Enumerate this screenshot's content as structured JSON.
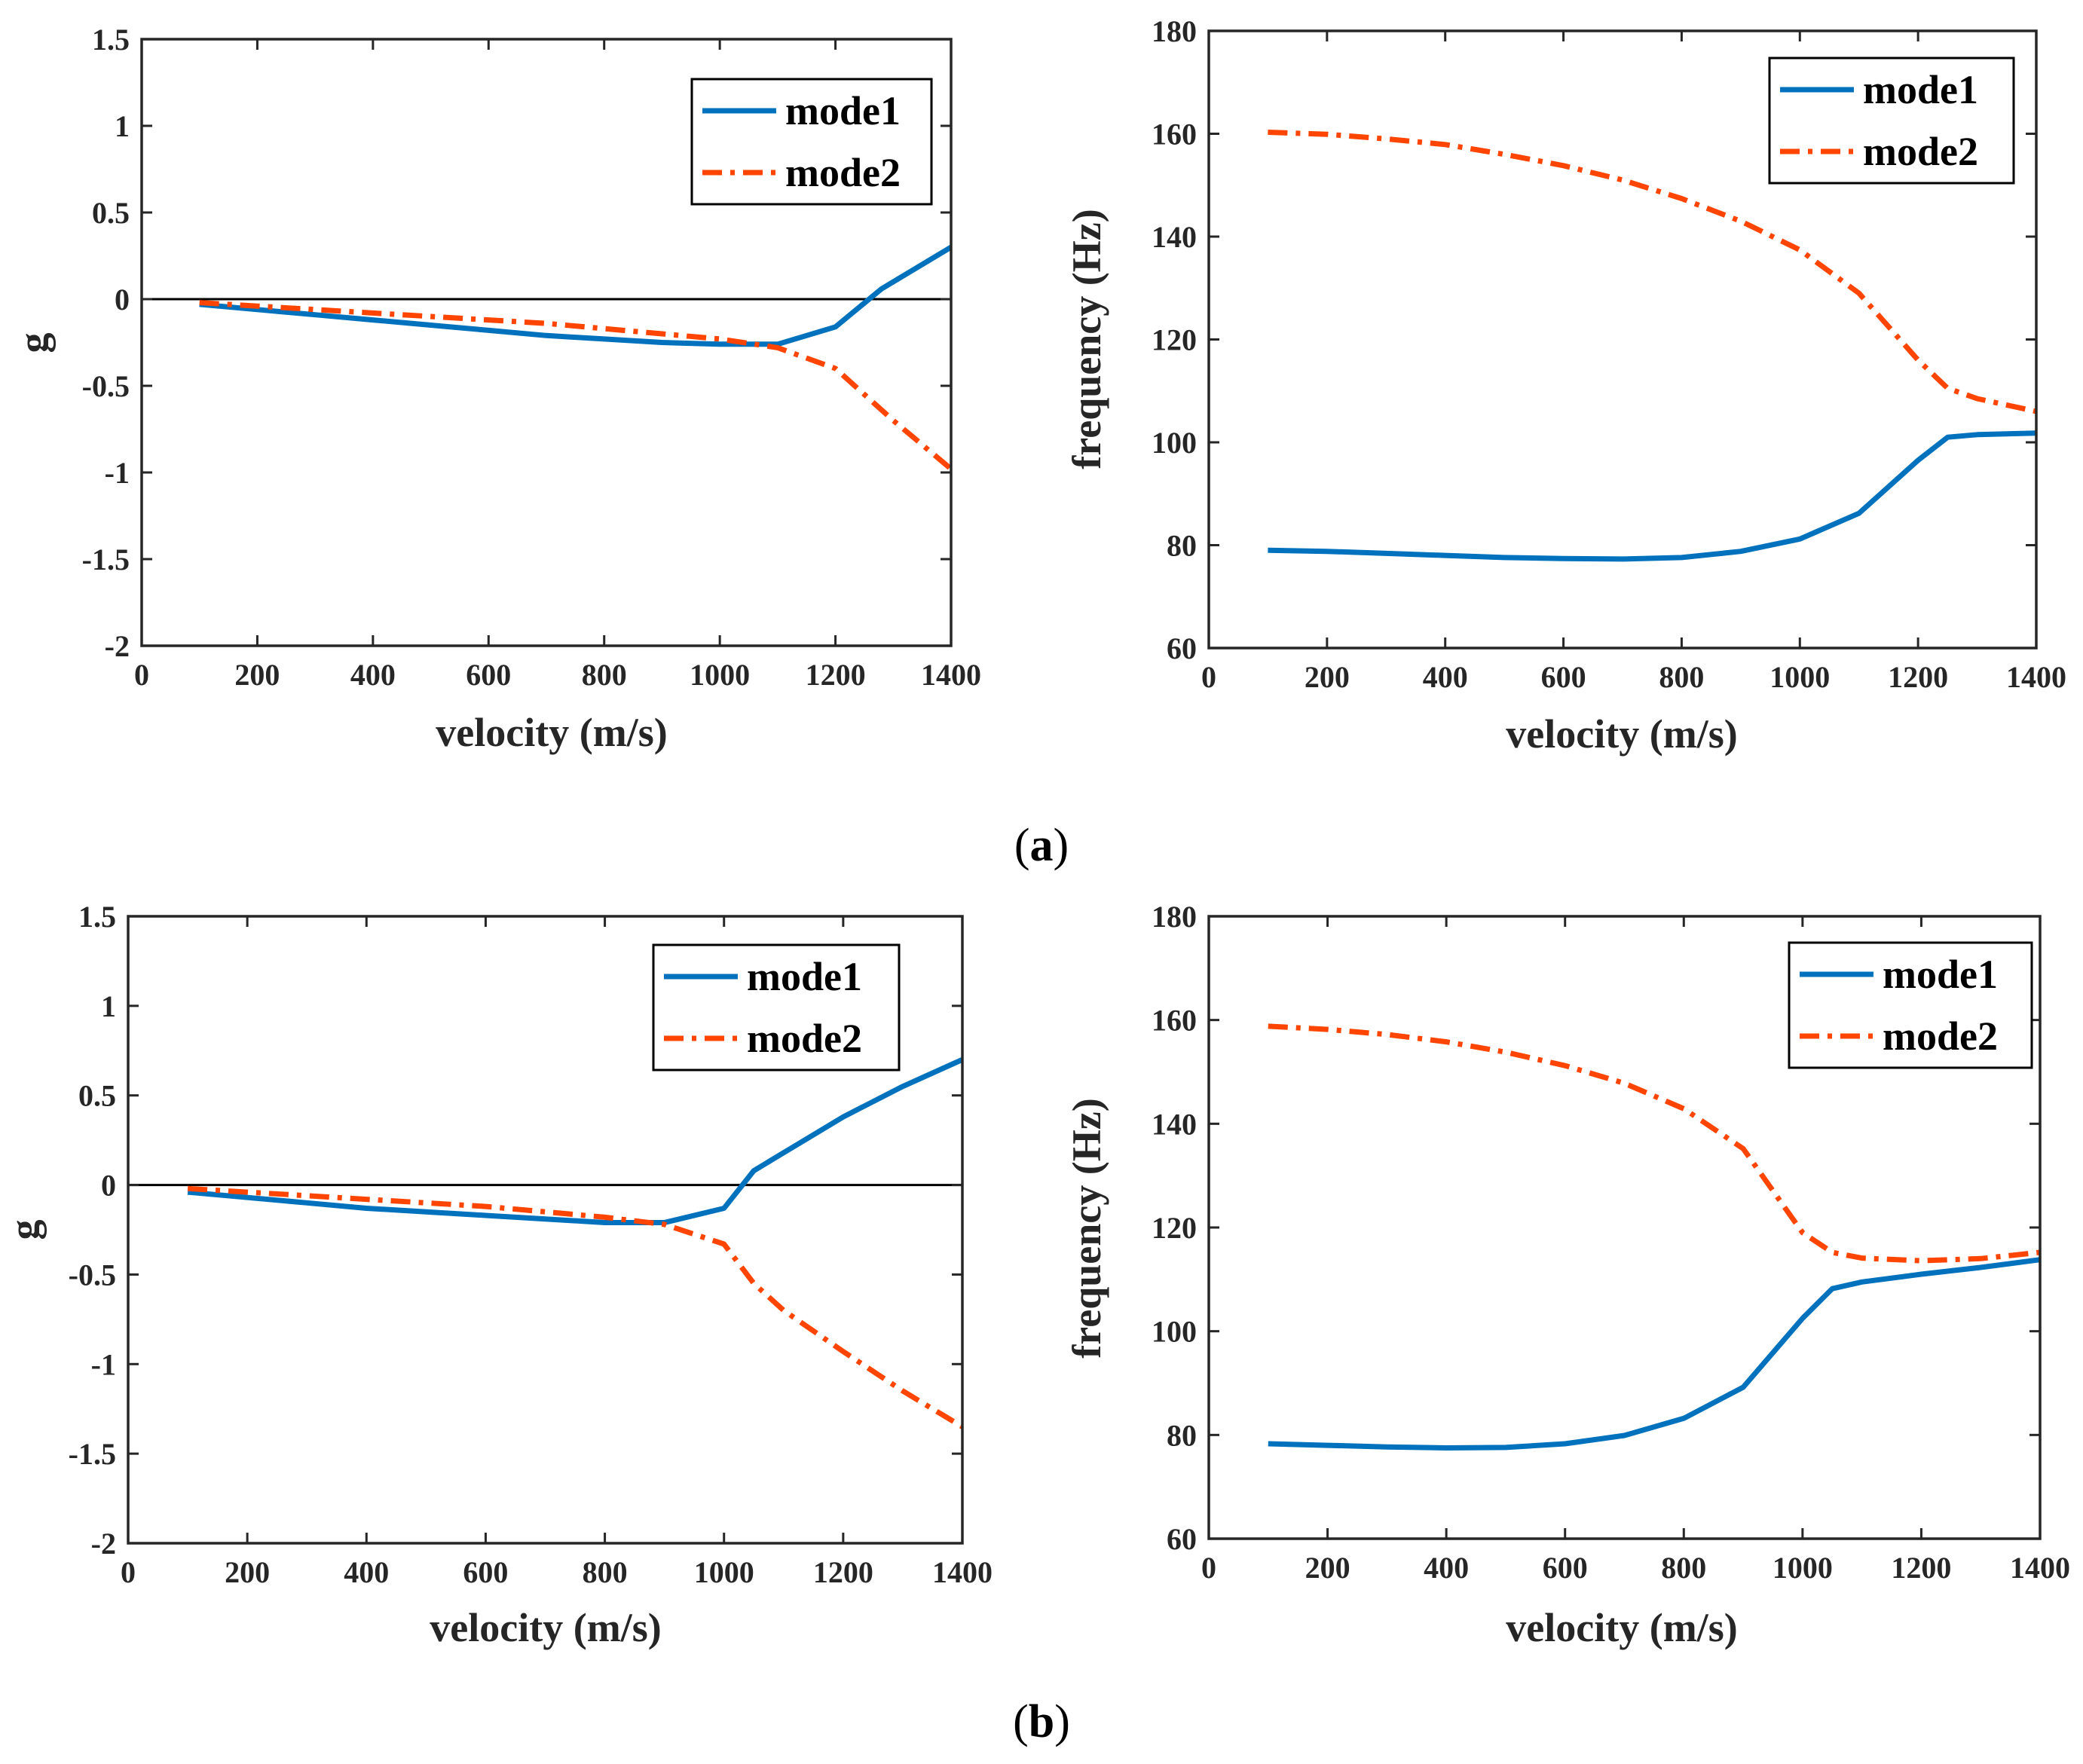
{
  "panels": [
    {
      "label": "(a)",
      "letter": "a"
    },
    {
      "label": "(b)",
      "letter": "b"
    }
  ],
  "colors": {
    "mode1": "#0072BD",
    "mode2": "#FF4500",
    "axis": "#262626",
    "zero_line": "#000000"
  },
  "chart_data": [
    {
      "id": "a-damping",
      "type": "line",
      "panel": "a",
      "xlabel": "velocity (m/s)",
      "ylabel": "g",
      "xlim": [
        0,
        1400
      ],
      "ylim": [
        -2,
        1.5
      ],
      "xticks": [
        0,
        200,
        400,
        600,
        800,
        1000,
        1200,
        1400
      ],
      "yticks": [
        -2,
        -1.5,
        -1,
        -0.5,
        0,
        0.5,
        1,
        1.5
      ],
      "legend": {
        "position": "top-right",
        "entries": [
          "mode1",
          "mode2"
        ]
      },
      "zero_line": true,
      "series": [
        {
          "name": "mode1",
          "style": "solid",
          "x": [
            100,
            200,
            300,
            400,
            500,
            600,
            700,
            800,
            900,
            1000,
            1100,
            1200,
            1280,
            1300,
            1400
          ],
          "y": [
            -0.03,
            -0.06,
            -0.09,
            -0.12,
            -0.15,
            -0.18,
            -0.21,
            -0.23,
            -0.25,
            -0.26,
            -0.26,
            -0.16,
            0.06,
            0.1,
            0.3
          ]
        },
        {
          "name": "mode2",
          "style": "dashdot",
          "x": [
            100,
            200,
            300,
            400,
            500,
            600,
            700,
            800,
            900,
            1000,
            1100,
            1200,
            1300,
            1400
          ],
          "y": [
            -0.02,
            -0.04,
            -0.06,
            -0.08,
            -0.1,
            -0.12,
            -0.14,
            -0.17,
            -0.2,
            -0.23,
            -0.28,
            -0.4,
            -0.7,
            -0.98
          ]
        }
      ]
    },
    {
      "id": "a-frequency",
      "type": "line",
      "panel": "a",
      "xlabel": "velocity (m/s)",
      "ylabel": "frequency (Hz)",
      "xlim": [
        0,
        1400
      ],
      "ylim": [
        60,
        180
      ],
      "xticks": [
        0,
        200,
        400,
        600,
        800,
        1000,
        1200,
        1400
      ],
      "yticks": [
        60,
        80,
        100,
        120,
        140,
        160,
        180
      ],
      "legend": {
        "position": "top-right",
        "entries": [
          "mode1",
          "mode2"
        ]
      },
      "zero_line": false,
      "series": [
        {
          "name": "mode1",
          "style": "solid",
          "x": [
            100,
            200,
            300,
            400,
            500,
            600,
            700,
            800,
            900,
            1000,
            1100,
            1200,
            1250,
            1300,
            1400
          ],
          "y": [
            79.0,
            78.8,
            78.4,
            78.0,
            77.6,
            77.4,
            77.3,
            77.6,
            78.8,
            81.2,
            86.2,
            96.5,
            101.0,
            101.5,
            101.8
          ]
        },
        {
          "name": "mode2",
          "style": "dashdot",
          "x": [
            100,
            200,
            300,
            400,
            500,
            600,
            700,
            800,
            900,
            1000,
            1100,
            1200,
            1250,
            1300,
            1400
          ],
          "y": [
            160.3,
            159.9,
            159.0,
            157.9,
            156.0,
            153.8,
            151.0,
            147.4,
            143.0,
            137.4,
            129.0,
            116.0,
            110.5,
            108.5,
            106.0
          ]
        }
      ]
    },
    {
      "id": "b-damping",
      "type": "line",
      "panel": "b",
      "xlabel": "velocity (m/s)",
      "ylabel": "g",
      "xlim": [
        0,
        1400
      ],
      "ylim": [
        -2,
        1.5
      ],
      "xticks": [
        0,
        200,
        400,
        600,
        800,
        1000,
        1200,
        1400
      ],
      "yticks": [
        -2,
        -1.5,
        -1,
        -0.5,
        0,
        0.5,
        1,
        1.5
      ],
      "legend": {
        "position": "top-right",
        "entries": [
          "mode1",
          "mode2"
        ]
      },
      "zero_line": true,
      "series": [
        {
          "name": "mode1",
          "style": "solid",
          "x": [
            100,
            200,
            300,
            400,
            500,
            600,
            700,
            800,
            900,
            1000,
            1050,
            1100,
            1200,
            1300,
            1400
          ],
          "y": [
            -0.04,
            -0.07,
            -0.1,
            -0.13,
            -0.15,
            -0.17,
            -0.19,
            -0.21,
            -0.21,
            -0.13,
            0.08,
            0.18,
            0.38,
            0.55,
            0.7
          ]
        },
        {
          "name": "mode2",
          "style": "dashdot",
          "x": [
            100,
            200,
            300,
            400,
            500,
            600,
            700,
            800,
            900,
            1000,
            1050,
            1100,
            1200,
            1300,
            1400
          ],
          "y": [
            -0.02,
            -0.04,
            -0.06,
            -0.08,
            -0.1,
            -0.12,
            -0.15,
            -0.18,
            -0.22,
            -0.33,
            -0.55,
            -0.7,
            -0.93,
            -1.15,
            -1.35
          ]
        }
      ]
    },
    {
      "id": "b-frequency",
      "type": "line",
      "panel": "b",
      "xlabel": "velocity (m/s)",
      "ylabel": "frequency (Hz)",
      "xlim": [
        0,
        1400
      ],
      "ylim": [
        60,
        180
      ],
      "xticks": [
        0,
        200,
        400,
        600,
        800,
        1000,
        1200,
        1400
      ],
      "yticks": [
        60,
        80,
        100,
        120,
        140,
        160,
        180
      ],
      "legend": {
        "position": "top-right",
        "entries": [
          "mode1",
          "mode2"
        ]
      },
      "zero_line": false,
      "series": [
        {
          "name": "mode1",
          "style": "solid",
          "x": [
            100,
            200,
            300,
            400,
            500,
            600,
            700,
            800,
            900,
            1000,
            1050,
            1100,
            1200,
            1300,
            1400
          ],
          "y": [
            78.3,
            78.0,
            77.7,
            77.5,
            77.6,
            78.3,
            79.9,
            83.2,
            89.2,
            102.5,
            108.2,
            109.5,
            111.0,
            112.3,
            113.8
          ]
        },
        {
          "name": "mode2",
          "style": "dashdot",
          "x": [
            100,
            200,
            300,
            400,
            500,
            600,
            700,
            800,
            900,
            1000,
            1050,
            1100,
            1200,
            1300,
            1400
          ],
          "y": [
            158.8,
            158.2,
            157.2,
            155.8,
            153.8,
            151.2,
            147.8,
            142.9,
            135.2,
            119.0,
            115.2,
            114.1,
            113.6,
            114.0,
            115.2
          ]
        }
      ]
    }
  ]
}
